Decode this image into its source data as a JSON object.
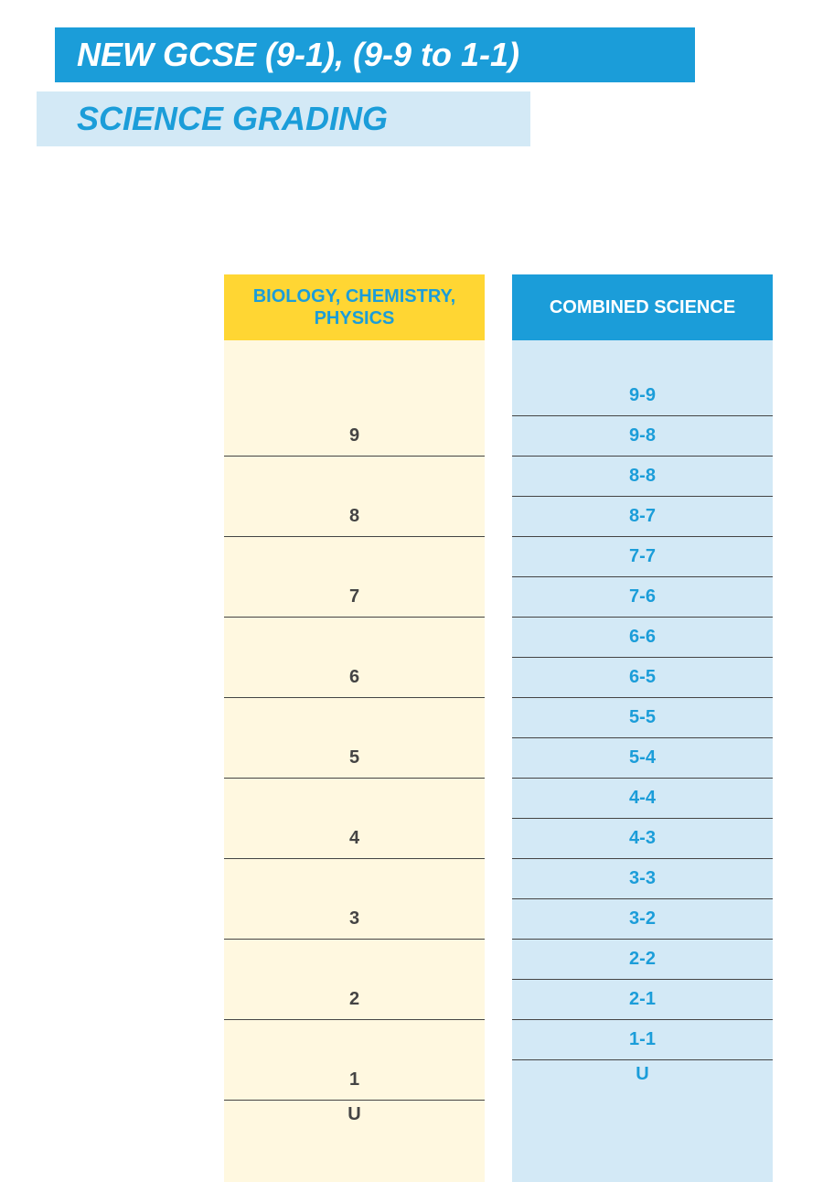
{
  "title_line1": "NEW GCSE (9-1), (9-9 to 1-1)",
  "title_line2": "SCIENCE GRADING",
  "colors": {
    "banner1_bg": "#1b9dd9",
    "banner1_fg": "#ffffff",
    "banner2_bg": "#d3e9f6",
    "banner2_fg": "#1b9dd9",
    "left_header_bg": "#ffd633",
    "left_header_fg": "#1b9dd9",
    "left_body_bg": "#fff8e0",
    "left_text": "#444444",
    "right_header_bg": "#1b9dd9",
    "right_header_fg": "#ffffff",
    "right_body_bg": "#d3e9f6",
    "right_text": "#1b9dd9",
    "rule": "#444444"
  },
  "left": {
    "header": "BIOLOGY, CHEMISTRY, PHYSICS",
    "grades": [
      "9",
      "8",
      "7",
      "6",
      "5",
      "4",
      "3",
      "2",
      "1"
    ],
    "u": "U"
  },
  "right": {
    "header": "COMBINED SCIENCE",
    "grades": [
      "9-9",
      "9-8",
      "8-8",
      "8-7",
      "7-7",
      "7-6",
      "6-6",
      "6-5",
      "5-5",
      "5-4",
      "4-4",
      "4-3",
      "3-3",
      "3-2",
      "2-2",
      "2-1",
      "1-1"
    ],
    "u": "U"
  }
}
